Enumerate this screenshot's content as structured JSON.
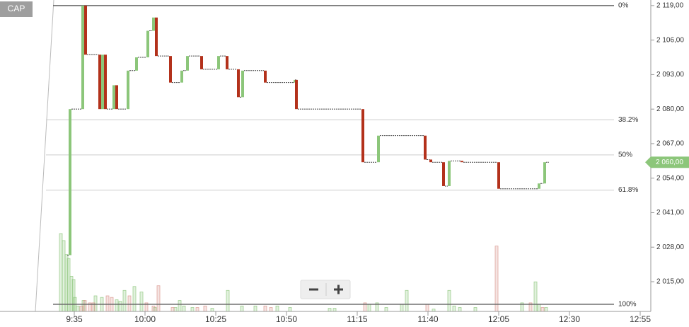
{
  "chart_data": {
    "type": "step",
    "symbol": "CAP",
    "x": [
      572,
      573.5,
      578,
      579,
      584,
      585,
      586,
      589,
      590,
      594,
      597,
      601,
      603,
      604,
      609,
      613,
      615,
      620,
      626,
      629,
      633,
      634.5,
      642.5,
      653,
      653.5,
      677,
      682.5,
      699,
      701,
      705.5,
      707.5,
      712,
      725,
      739.25,
      741.25
    ],
    "values": [
      2025,
      2080,
      2119,
      2100.5,
      2080,
      2100.5,
      2080,
      2089,
      2080,
      2094.5,
      2099.5,
      2109.5,
      2114.5,
      2100,
      2090,
      2094.5,
      2100,
      2095,
      2100,
      2095,
      2084.5,
      2094.5,
      2090,
      2091,
      2080,
      2060,
      2070,
      2061,
      2060,
      2051,
      2060.5,
      2060,
      2050,
      2052,
      2060
    ],
    "up_color": "#8cc67a",
    "down_color": "#b3311b",
    "xlim": [
      548.75,
      778.75
    ],
    "ylim": [
      2003.8,
      2121.1
    ],
    "y2lim": [
      0,
      400
    ],
    "xticks": [
      {
        "value": 575,
        "label": "9:35"
      },
      {
        "value": 600,
        "label": "10:00"
      },
      {
        "value": 625,
        "label": "10:25"
      },
      {
        "value": 650,
        "label": "10:50"
      },
      {
        "value": 675,
        "label": "11:15"
      },
      {
        "value": 700,
        "label": "11:40"
      },
      {
        "value": 725,
        "label": "12:05"
      },
      {
        "value": 750,
        "label": "12:30"
      },
      {
        "value": 775,
        "label": "12:55"
      }
    ],
    "yticks": [
      {
        "value": 2015,
        "label": "2 015,00"
      },
      {
        "value": 2028,
        "label": "2 028,00"
      },
      {
        "value": 2041,
        "label": "2 041,00"
      },
      {
        "value": 2054,
        "label": "2 054,00"
      },
      {
        "value": 2067,
        "label": "2 067,00"
      },
      {
        "value": 2080,
        "label": "2 080,00"
      },
      {
        "value": 2093,
        "label": "2 093,00"
      },
      {
        "value": 2106,
        "label": "2 106,00"
      },
      {
        "value": 2119,
        "label": "2 119,00"
      }
    ],
    "last_price": {
      "value": 2060,
      "label": "2 060,00"
    },
    "levels": [
      {
        "value": 2119,
        "label": "0%"
      },
      {
        "value": 2076,
        "label": "38.2%"
      },
      {
        "value": 2062.75,
        "label": "50%"
      },
      {
        "value": 2049.5,
        "label": "61.8%"
      },
      {
        "value": 2006.5,
        "label": "100%"
      }
    ],
    "volume_up": {
      "color": "#8cc67a",
      "x": [
        570.25,
        571.25,
        572.25,
        573,
        574,
        574.75,
        575.25,
        576.25,
        578.25,
        582.5,
        584.75,
        590,
        591.25,
        592.75,
        596.25,
        598.75,
        603.5,
        610.75,
        612.25,
        613.75,
        616.75,
        623.75,
        629.25,
        634.25,
        639,
        646.75,
        651.25,
        665.25,
        667,
        679.25,
        682,
        685.25,
        690.75,
        692.5,
        702,
        707.5,
        709.25,
        711.25,
        716.75,
        733.25,
        738,
        739.25,
        741.75
      ],
      "values": [
        100,
        91,
        73,
        68,
        45,
        41,
        18,
        7,
        14,
        20,
        18,
        15,
        13,
        27,
        32,
        25,
        5,
        5,
        14,
        7,
        5,
        4,
        27,
        7,
        7,
        7,
        5,
        4,
        4,
        9,
        11,
        5,
        9,
        27,
        3,
        27,
        7,
        5,
        5,
        11,
        38,
        9,
        5
      ]
    },
    "volume_down": {
      "color": "#d9948a",
      "x": [
        577.5,
        578.75,
        580.5,
        581.75,
        586.75,
        588.25,
        594.5,
        600.5,
        603,
        604.75,
        609.75,
        618.5,
        621.25,
        642.5,
        644.5,
        677.75,
        699.75,
        724.25,
        736.25,
        740.5
      ],
      "values": [
        7,
        14,
        11,
        11,
        20,
        18,
        20,
        11,
        7,
        33,
        5,
        5,
        7,
        7,
        5,
        11,
        9,
        84,
        11,
        5
      ]
    }
  }
}
